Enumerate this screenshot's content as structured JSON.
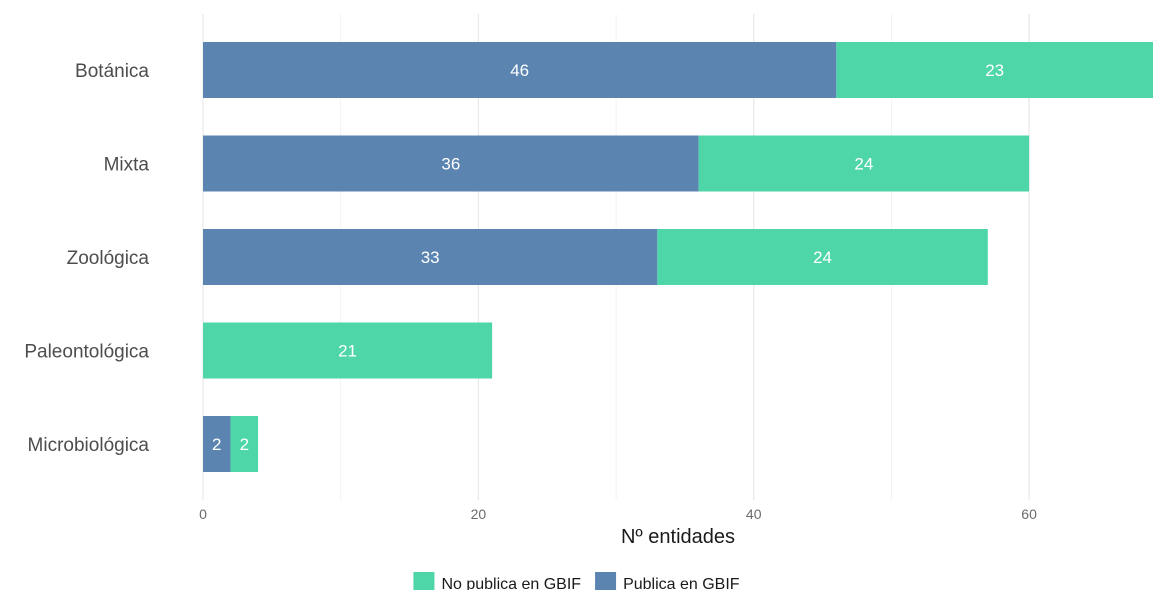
{
  "chart_data": {
    "type": "bar",
    "orientation": "horizontal",
    "stacked": true,
    "categories": [
      "Botánica",
      "Mixta",
      "Zoológica",
      "Paleontológica",
      "Microbiológica"
    ],
    "series": [
      {
        "name": "Publica en GBIF",
        "values": [
          46,
          36,
          33,
          0,
          2
        ],
        "color": "#5b84b1"
      },
      {
        "name": "No publica en GBIF",
        "values": [
          23,
          24,
          24,
          21,
          2
        ],
        "color": "#4fd6a8"
      }
    ],
    "title": "",
    "xlabel": "Nº entidades",
    "ylabel": "",
    "xlim": [
      0,
      69
    ],
    "xticks": [
      0,
      20,
      40,
      60
    ],
    "grid": true,
    "legend": {
      "position": "bottom",
      "order": [
        "No publica en GBIF",
        "Publica en GBIF"
      ]
    }
  }
}
